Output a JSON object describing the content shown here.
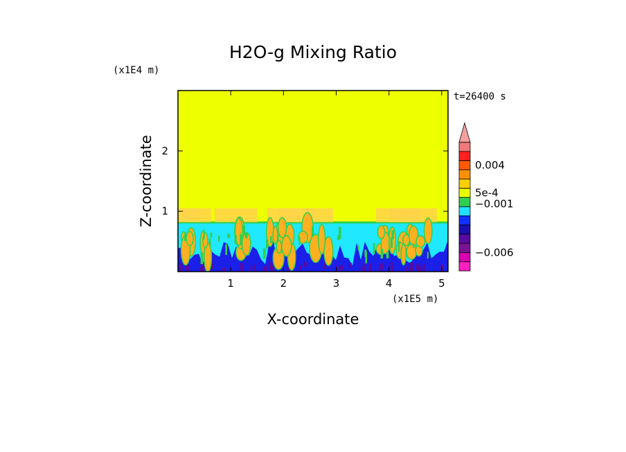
{
  "chart_data": {
    "type": "heatmap",
    "title": "H2O-g Mixing Ratio",
    "xlabel": "X-coordinate",
    "ylabel": "Z-coordinate",
    "x_unit": "(x1E5 m)",
    "y_unit": "(x1E4 m)",
    "xlim": [
      0,
      5.12
    ],
    "ylim": [
      0,
      3.0
    ],
    "x_ticks": [
      {
        "value": 1,
        "label": "1"
      },
      {
        "value": 2,
        "label": "2"
      },
      {
        "value": 3,
        "label": "3"
      },
      {
        "value": 4,
        "label": "4"
      },
      {
        "value": 5,
        "label": "5"
      }
    ],
    "y_ticks": [
      {
        "value": 1,
        "label": "1"
      },
      {
        "value": 2,
        "label": "2"
      }
    ],
    "time_label": "t=26400 s",
    "colorbar": {
      "colors": [
        "#ff1fbf",
        "#d800b0",
        "#7a1296",
        "#5a0aa0",
        "#1a10b0",
        "#1030ff",
        "#20e0ff",
        "#30d050",
        "#e8ff00",
        "#ffd000",
        "#ff9000",
        "#ff5a00",
        "#ff2020",
        "#f07878",
        "#f5a0a0"
      ],
      "labels": [
        {
          "value": "0.004",
          "level": 11.5
        },
        {
          "value": "5e-4",
          "level": 8.5
        },
        {
          "value": "−0.001",
          "level": 7.3
        },
        {
          "value": "−0.006",
          "level": 2.0
        }
      ]
    },
    "field": {
      "background_level": 8,
      "upper_layer_top_z": 0.82,
      "cloud_top_z": 1.05,
      "cloud_clusters_x": [
        0.1,
        0.35,
        1.1,
        2.0,
        2.25,
        2.65,
        4.1,
        4.3,
        4.6
      ]
    },
    "colors": {
      "top_region": "#eeff00",
      "cyan_layer": "#20e8ff",
      "blue_base": "#1a20e8",
      "green_edge": "#30d050",
      "orange_cloud": "#ffb020"
    }
  }
}
